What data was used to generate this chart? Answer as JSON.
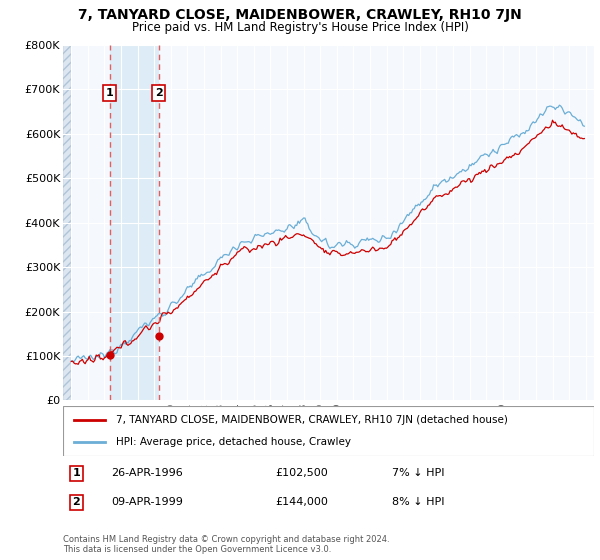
{
  "title": "7, TANYARD CLOSE, MAIDENBOWER, CRAWLEY, RH10 7JN",
  "subtitle": "Price paid vs. HM Land Registry's House Price Index (HPI)",
  "hpi_label": "HPI: Average price, detached house, Crawley",
  "property_label": "7, TANYARD CLOSE, MAIDENBOWER, CRAWLEY, RH10 7JN (detached house)",
  "footnote": "Contains HM Land Registry data © Crown copyright and database right 2024.\nThis data is licensed under the Open Government Licence v3.0.",
  "transactions": [
    {
      "id": 1,
      "date": "26-APR-1996",
      "price": 102500,
      "price_str": "£102,500",
      "pct": "7%",
      "direction": "↓",
      "year": 1996.32
    },
    {
      "id": 2,
      "date": "09-APR-1999",
      "price": 144000,
      "price_str": "£144,000",
      "pct": "8%",
      "direction": "↓",
      "year": 1999.27
    }
  ],
  "hpi_color": "#6baed6",
  "property_color": "#cc0000",
  "dashed_line_color": "#e06060",
  "marker_color": "#cc0000",
  "bg_color": "#f5f8fc",
  "hatch_facecolor": "#dce6f0",
  "shade_color": "#d0e4f5",
  "ylim": [
    0,
    800000
  ],
  "xlim_start": 1993.5,
  "xlim_end": 2025.5
}
